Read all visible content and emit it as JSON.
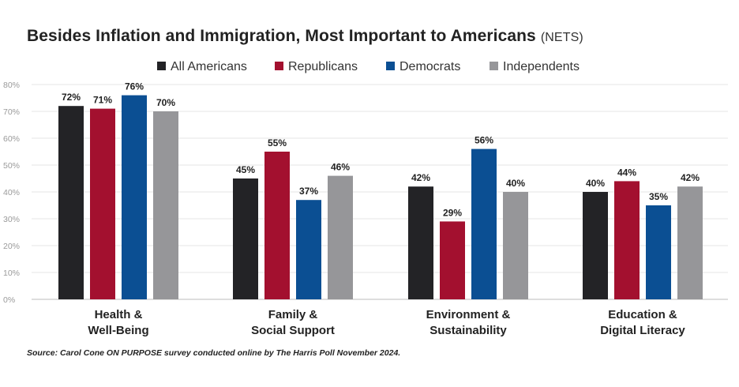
{
  "title": "Besides Inflation and Immigration, Most Important to Americans",
  "title_suffix": "(NETS)",
  "source": "Source: Carol Cone ON PURPOSE survey conducted online by The Harris Poll November 2024.",
  "chart_data": {
    "type": "bar",
    "categories": [
      [
        "Health &",
        "Well-Being"
      ],
      [
        "Family &",
        "Social Support"
      ],
      [
        "Environment &",
        "Sustainability"
      ],
      [
        "Education &",
        "Digital Literacy"
      ]
    ],
    "series": [
      {
        "name": "All Americans",
        "color": "#232326",
        "values": [
          72,
          45,
          42,
          40
        ]
      },
      {
        "name": "Republicans",
        "color": "#a3102f",
        "values": [
          71,
          55,
          29,
          44
        ]
      },
      {
        "name": "Democrats",
        "color": "#0b4f93",
        "values": [
          76,
          37,
          56,
          35
        ]
      },
      {
        "name": "Independents",
        "color": "#969699",
        "values": [
          70,
          46,
          40,
          42
        ]
      }
    ],
    "ylim": [
      0,
      80
    ],
    "yticks": [
      "0%",
      "10%",
      "20%",
      "30%",
      "40%",
      "50%",
      "60%",
      "70%",
      "80%"
    ],
    "value_suffix": "%",
    "grid": true,
    "legend": "top-center"
  }
}
